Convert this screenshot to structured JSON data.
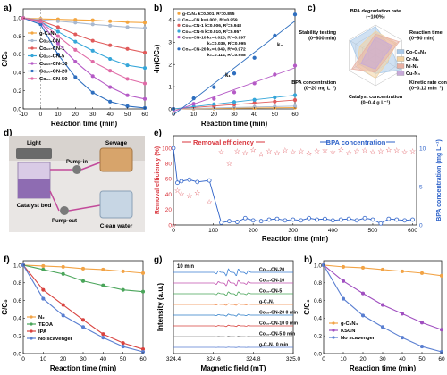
{
  "colors": {
    "gcn": "#f4a640",
    "co10": "#a9b9cf",
    "cn1": "#e05a5a",
    "cn5": "#35a6d9",
    "cn10": "#b55ac6",
    "cn20": "#2f6fbf",
    "cn50": "#e06aa6",
    "n2": "#f2a345",
    "teoa": "#4aa55a",
    "ipa": "#d9433f",
    "none": "#5a7fd1",
    "ksn": "#a04fc0",
    "red": "#d9363e",
    "blue": "#2f63c9"
  },
  "chart_data": [
    {
      "id": "a",
      "type": "line",
      "panel_label": "a)",
      "xlabel": "Reaction time (min)",
      "ylabel": "C/C₀",
      "xlim": [
        -10,
        60
      ],
      "ylim": [
        0,
        1.1
      ],
      "xticks": [
        "-10",
        "0",
        "10",
        "20",
        "30",
        "40",
        "50",
        "60"
      ],
      "yticks": [
        "0.0",
        "0.2",
        "0.4",
        "0.6",
        "0.8",
        "1.0"
      ],
      "x": [
        -10,
        0,
        10,
        20,
        30,
        40,
        50,
        60
      ],
      "series": [
        {
          "name": "g-C₃N₄",
          "color": "#f4a640",
          "values": [
            1.0,
            0.99,
            0.985,
            0.98,
            0.975,
            0.965,
            0.955,
            0.95
          ]
        },
        {
          "name": "Co₁₀-CN",
          "color": "#a9b9cf",
          "values": [
            1.0,
            0.98,
            0.965,
            0.95,
            0.93,
            0.915,
            0.9,
            0.89
          ]
        },
        {
          "name": "Co₁₀-CN-1",
          "color": "#e05a5a",
          "values": [
            1.0,
            0.97,
            0.9,
            0.82,
            0.75,
            0.7,
            0.66,
            0.62
          ]
        },
        {
          "name": "Co₁₀-CN-5",
          "color": "#35a6d9",
          "values": [
            1.0,
            0.96,
            0.85,
            0.74,
            0.64,
            0.55,
            0.48,
            0.45
          ]
        },
        {
          "name": "Co₁₀-CN-10",
          "color": "#b55ac6",
          "values": [
            1.0,
            0.95,
            0.72,
            0.52,
            0.36,
            0.24,
            0.15,
            0.11
          ]
        },
        {
          "name": "Co₁₀-CN-20",
          "color": "#2f6fbf",
          "values": [
            1.0,
            0.93,
            0.6,
            0.35,
            0.18,
            0.08,
            0.03,
            0.01
          ]
        },
        {
          "name": "Co₁₀-CN-50",
          "color": "#e06aa6",
          "values": [
            1.0,
            0.96,
            0.8,
            0.65,
            0.52,
            0.42,
            0.33,
            0.28
          ]
        }
      ]
    },
    {
      "id": "b",
      "type": "scatter",
      "panel_label": "b)",
      "xlabel": "Reaction time (min)",
      "ylabel": "-ln(C/C₀)",
      "xlim": [
        0,
        60
      ],
      "ylim": [
        0,
        4.5
      ],
      "xticks": [
        "0",
        "10",
        "20",
        "30",
        "40",
        "50",
        "60"
      ],
      "yticks": [
        "0",
        "1",
        "2",
        "3",
        "4"
      ],
      "x": [
        0,
        10,
        20,
        30,
        40,
        50,
        60
      ],
      "legend": [
        "g-C₃N₄ k=0.001, R²=0.855",
        "Co₁₀-CN k=0.002, R²=0.959",
        "Co₁₀-CN-1 k=0.006, R²=0.948",
        "Co₁₀-CN-5 k=0.010, R²=0.957",
        "Co₁₀-CN-10 k₁=0.023, R²=0.997",
        "k₂=0.039, R²=0.995",
        "Co₁₀-CN-20 k₁=0.049, R²=0.972",
        "k₂=0.114, R²=0.958"
      ],
      "annotations": [
        "k₁",
        "k₂"
      ],
      "series": [
        {
          "color": "#f4a640",
          "values": [
            0,
            0.01,
            0.02,
            0.03,
            0.04,
            0.05,
            0.06
          ]
        },
        {
          "color": "#a9b9cf",
          "values": [
            0,
            0.02,
            0.04,
            0.07,
            0.09,
            0.11,
            0.12
          ]
        },
        {
          "color": "#e05a5a",
          "values": [
            0,
            0.06,
            0.13,
            0.2,
            0.27,
            0.33,
            0.4
          ]
        },
        {
          "color": "#35a6d9",
          "values": [
            0,
            0.1,
            0.21,
            0.31,
            0.41,
            0.52,
            0.62
          ]
        },
        {
          "color": "#b55ac6",
          "values": [
            0,
            0.23,
            0.46,
            0.75,
            1.15,
            1.55,
            1.95
          ]
        },
        {
          "color": "#2f6fbf",
          "values": [
            0,
            0.48,
            0.98,
            1.6,
            2.3,
            3.3,
            4.25
          ]
        }
      ]
    },
    {
      "id": "c",
      "type": "radar",
      "panel_label": "c)",
      "axes": [
        "BPA degradation rate (~100%)",
        "Reaction time (0~90 min)",
        "Kinetic rate constant (0~0.12 min⁻¹)",
        "Catalyst concentration (0~0.4 g L⁻¹)",
        "BPA concentration (0~20 mg L⁻¹)",
        "Stability testing (0~600 min)"
      ],
      "series": [
        {
          "name": "Co-C₃N₄",
          "color": "#a9c9e8",
          "values": [
            0.95,
            0.55,
            0.95,
            0.6,
            0.6,
            0.95
          ]
        },
        {
          "name": "Cr-N₄",
          "color": "#f3d3a3",
          "values": [
            0.8,
            0.8,
            0.45,
            0.75,
            0.7,
            0.6
          ]
        },
        {
          "name": "Ni-N₄",
          "color": "#e9b0a3",
          "values": [
            0.7,
            0.9,
            0.35,
            0.55,
            0.9,
            0.4
          ]
        },
        {
          "name": "Cu-N₄",
          "color": "#c7a9d9",
          "values": [
            0.6,
            0.65,
            0.25,
            0.45,
            0.55,
            0.3
          ]
        }
      ]
    },
    {
      "id": "e",
      "type": "scatter",
      "panel_label": "e)",
      "xlabel": "Reaction time (min)",
      "ylabel_left": "Removal efficiency (%)",
      "ylabel_right": "BPA concentration (mg L⁻¹)",
      "title_left": "Removal efficiency",
      "title_right": "BPA concentration",
      "xlim": [
        0,
        610
      ],
      "xticks": [
        "0",
        "100",
        "200",
        "300",
        "400",
        "500",
        "600"
      ],
      "yticks_left": [
        "0",
        "20",
        "40",
        "60",
        "80",
        "100"
      ],
      "yticks_right": [
        "0",
        "5",
        "10"
      ],
      "ylim_left": [
        0,
        100
      ],
      "ylim_right": [
        0,
        10
      ],
      "removal_x": [
        0,
        10,
        20,
        40,
        60,
        90,
        120,
        140,
        160,
        180,
        200,
        220,
        240,
        260,
        280,
        300,
        320,
        340,
        360,
        380,
        400,
        420,
        440,
        460,
        480,
        500,
        520,
        540,
        560,
        580,
        600
      ],
      "removal": [
        0,
        45,
        40,
        38,
        42,
        30,
        95,
        80,
        96,
        94,
        98,
        92,
        96,
        94,
        97,
        95,
        96,
        93,
        96,
        97,
        95,
        98,
        94,
        96,
        97,
        95,
        96,
        98,
        97,
        95,
        96
      ],
      "conc_x": [
        0,
        10,
        20,
        40,
        60,
        90,
        120,
        140,
        160,
        180,
        200,
        220,
        240,
        260,
        280,
        300,
        320,
        340,
        360,
        380,
        400,
        420,
        440,
        460,
        480,
        500,
        520,
        540,
        560,
        580,
        600
      ],
      "conc": [
        10,
        5.5,
        5.7,
        5.9,
        5.6,
        5.8,
        0.3,
        0.5,
        0.4,
        0.9,
        0.6,
        0.5,
        0.7,
        0.8,
        0.6,
        0.7,
        0.6,
        0.9,
        0.7,
        0.8,
        0.6,
        0.7,
        0.8,
        0.6,
        0.9,
        0.7,
        0.2,
        0.8,
        0.7,
        0.6,
        0.7
      ]
    },
    {
      "id": "f",
      "type": "line",
      "panel_label": "f)",
      "xlabel": "Reaction time (min)",
      "ylabel": "C/C₀",
      "xlim": [
        0,
        60
      ],
      "ylim": [
        0,
        1.05
      ],
      "xticks": [
        "0",
        "10",
        "20",
        "30",
        "40",
        "50",
        "60"
      ],
      "yticks": [
        "0.0",
        "0.2",
        "0.4",
        "0.6",
        "0.8",
        "1.0"
      ],
      "x": [
        0,
        10,
        20,
        30,
        40,
        50,
        60
      ],
      "series": [
        {
          "name": "N₂",
          "color": "#f2a345",
          "values": [
            1.0,
            0.99,
            0.98,
            0.96,
            0.95,
            0.93,
            0.91
          ]
        },
        {
          "name": "TEOA",
          "color": "#4aa55a",
          "values": [
            1.0,
            0.95,
            0.9,
            0.82,
            0.77,
            0.72,
            0.7
          ]
        },
        {
          "name": "IPA",
          "color": "#d9433f",
          "values": [
            1.0,
            0.72,
            0.55,
            0.38,
            0.22,
            0.12,
            0.05
          ]
        },
        {
          "name": "No scavenger",
          "color": "#5a7fd1",
          "values": [
            1.0,
            0.62,
            0.43,
            0.3,
            0.18,
            0.08,
            0.02
          ]
        }
      ]
    },
    {
      "id": "g",
      "type": "line",
      "panel_label": "g)",
      "xlabel": "Magnetic field (mT)",
      "ylabel": "Intensity (a.u.)",
      "xlim": [
        324.4,
        325.0
      ],
      "xticks": [
        "324.4",
        "324.6",
        "324.8",
        "325.0"
      ],
      "corner_label": "10 min",
      "traces": [
        {
          "name": "Co₁₀-CN-20",
          "color": "#3b7fd3",
          "amp": 1.0
        },
        {
          "name": "Co₁₀-CN-10",
          "color": "#c254b0",
          "amp": 0.8
        },
        {
          "name": "Co₁₀-CN-5",
          "color": "#4aa55a",
          "amp": 0.55
        },
        {
          "name": "g-C₃N₄",
          "color": "#f08a4a",
          "amp": 0.25
        },
        {
          "name": "Co₁₀-CN-20 0 min",
          "color": "#2f7fc9",
          "amp": 0.3
        },
        {
          "name": "Co₁₀-CN-10 0 min",
          "color": "#d9433f",
          "amp": 0.2
        },
        {
          "name": "Co₁₀-CN-5 0 min",
          "color": "#8a8a8a",
          "amp": 0.12
        },
        {
          "name": "g-C₃N₄ 0 min",
          "color": "#5a7fd1",
          "amp": 0.05
        }
      ]
    },
    {
      "id": "h",
      "type": "line",
      "panel_label": "h)",
      "xlabel": "Reaction time (min)",
      "ylabel": "C/C₀",
      "xlim": [
        0,
        60
      ],
      "ylim": [
        0,
        1.05
      ],
      "xticks": [
        "0",
        "10",
        "20",
        "30",
        "40",
        "50",
        "60"
      ],
      "yticks": [
        "0.0",
        "0.2",
        "0.4",
        "0.6",
        "0.8",
        "1.0"
      ],
      "x": [
        0,
        10,
        20,
        30,
        40,
        50,
        60
      ],
      "series": [
        {
          "name": "g-C₃N₄",
          "color": "#f2a345",
          "values": [
            1.0,
            0.98,
            0.97,
            0.95,
            0.93,
            0.91,
            0.88
          ]
        },
        {
          "name": "KSCN",
          "color": "#a04fc0",
          "values": [
            1.0,
            0.82,
            0.68,
            0.55,
            0.45,
            0.35,
            0.27
          ]
        },
        {
          "name": "No scavenger",
          "color": "#5a7fd1",
          "values": [
            1.0,
            0.62,
            0.43,
            0.3,
            0.18,
            0.08,
            0.02
          ]
        }
      ]
    }
  ],
  "photo": {
    "panel_label": "d)",
    "labels": [
      "Light",
      "Sewage",
      "Pump-in",
      "Catalyst bed",
      "Pump-out",
      "Clean water"
    ]
  }
}
